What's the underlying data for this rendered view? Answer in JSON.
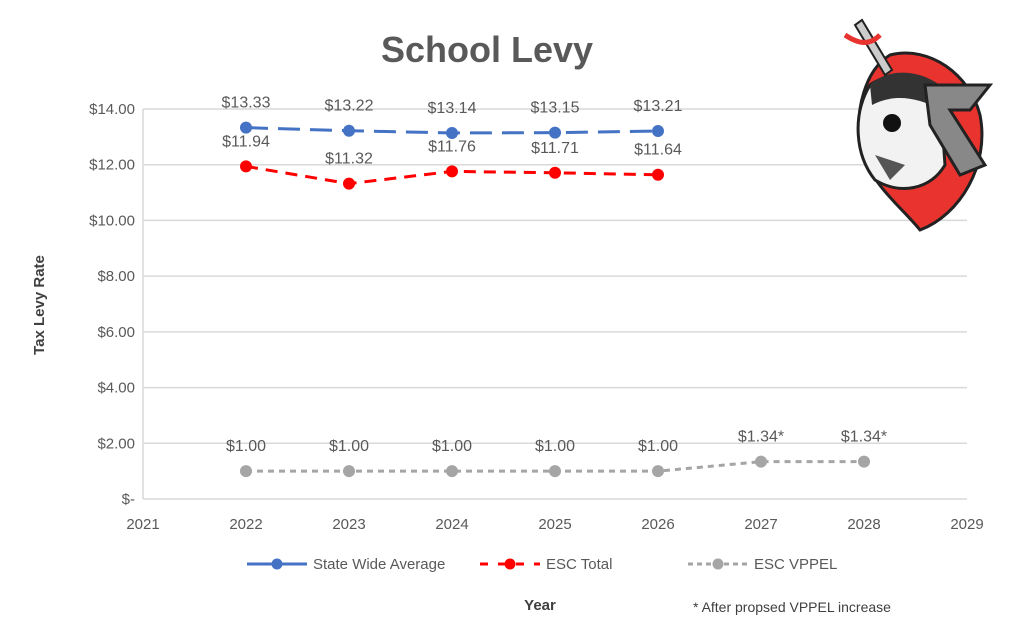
{
  "chart_data": {
    "type": "line",
    "title": "School Levy",
    "xlabel": "Year",
    "ylabel": "Tax Levy Rate",
    "xlim": [
      2021,
      2029
    ],
    "ylim": [
      0,
      14
    ],
    "x_ticks": [
      "2021",
      "2022",
      "2023",
      "2024",
      "2025",
      "2026",
      "2027",
      "2028",
      "2029"
    ],
    "y_ticks": [
      "$-",
      "$2.00",
      "$4.00",
      "$6.00",
      "$8.00",
      "$10.00",
      "$12.00",
      "$14.00"
    ],
    "grid": true,
    "legend_position": "bottom",
    "series": [
      {
        "name": "State Wide Average",
        "color": "#4472C4",
        "dash": "long-dash",
        "x": [
          2022,
          2023,
          2024,
          2025,
          2026
        ],
        "values": [
          13.33,
          13.22,
          13.14,
          13.15,
          13.21
        ],
        "labels": [
          "$13.33",
          "$13.22",
          "$13.14",
          "$13.15",
          "$13.21"
        ]
      },
      {
        "name": "ESC Total",
        "color": "#FF0000",
        "dash": "dash",
        "x": [
          2022,
          2023,
          2024,
          2025,
          2026
        ],
        "values": [
          11.94,
          11.32,
          11.76,
          11.71,
          11.64
        ],
        "labels": [
          "$11.94",
          "$11.32",
          "$11.76",
          "$11.71",
          "$11.64"
        ]
      },
      {
        "name": "ESC VPPEL",
        "color": "#A5A5A5",
        "dash": "short-dash",
        "x": [
          2022,
          2023,
          2024,
          2025,
          2026,
          2027,
          2028
        ],
        "values": [
          1.0,
          1.0,
          1.0,
          1.0,
          1.0,
          1.34,
          1.34
        ],
        "labels": [
          "$1.00",
          "$1.00",
          "$1.00",
          "$1.00",
          "$1.00",
          "$1.34*",
          "$1.34*"
        ]
      }
    ],
    "footnote": "* After propsed VPPEL increase"
  }
}
